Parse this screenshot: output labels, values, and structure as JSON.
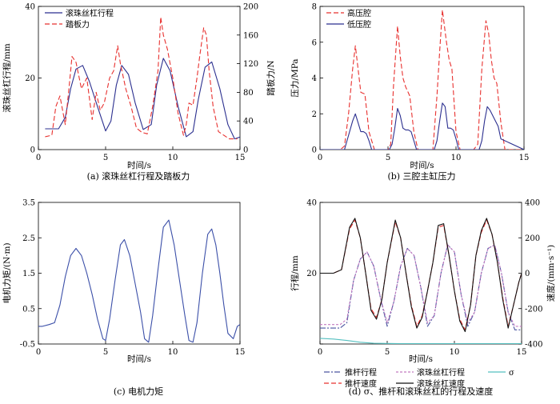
{
  "chart_data": [
    {
      "id": "a",
      "type": "line",
      "caption": "(a) 滚珠丝杠行程及踏板力",
      "xlabel": "时间/s",
      "ylabel": "滚珠丝杠行程/mm",
      "y2label": "踏板力/N",
      "xlim": [
        0,
        15
      ],
      "ylim": [
        0,
        40
      ],
      "y2lim": [
        0,
        200
      ],
      "xticks": [
        "0",
        "5",
        "10",
        "15"
      ],
      "yticks": [
        "0",
        "20",
        "40"
      ],
      "y2ticks": [
        "0",
        "40",
        "80",
        "120",
        "160",
        "200"
      ],
      "legend_position": "top-left",
      "series": [
        {
          "name": "滚珠丝杠行程",
          "axis": "left",
          "color": "#2b2f8f",
          "dash": "solid",
          "x": [
            0.5,
            1.5,
            2.0,
            2.4,
            2.8,
            3.3,
            3.8,
            4.4,
            5.0,
            5.4,
            5.8,
            6.2,
            6.7,
            7.2,
            7.8,
            8.4,
            8.8,
            9.3,
            9.8,
            10.4,
            11.0,
            11.5,
            11.9,
            12.4,
            12.9,
            13.5,
            14.1,
            14.6,
            15.0
          ],
          "y": [
            5.8,
            5.8,
            9,
            17,
            22.5,
            23.5,
            19,
            12,
            5.2,
            8,
            18,
            23.5,
            21,
            13,
            5.6,
            7,
            18,
            25.5,
            22,
            12,
            3.6,
            5,
            14,
            23,
            24.5,
            17,
            7,
            3,
            3.5
          ]
        },
        {
          "name": "踏板力",
          "axis": "right",
          "color": "#e8312f",
          "dash": "6,3",
          "x": [
            0.5,
            1.0,
            1.3,
            1.6,
            2.0,
            2.3,
            2.5,
            2.8,
            3.2,
            3.6,
            4.0,
            4.3,
            4.6,
            4.9,
            5.3,
            5.6,
            5.9,
            6.1,
            6.5,
            6.9,
            7.3,
            7.7,
            8.1,
            8.5,
            8.9,
            9.1,
            9.3,
            9.6,
            10.0,
            10.4,
            10.8,
            11.0,
            11.2,
            11.5,
            11.8,
            12.0,
            12.3,
            12.5,
            12.7,
            13.0,
            13.4,
            13.8,
            14.2,
            14.6,
            14.8
          ],
          "y": [
            18,
            20,
            60,
            75,
            35,
            90,
            130,
            122,
            85,
            100,
            42,
            80,
            55,
            65,
            100,
            110,
            145,
            120,
            85,
            60,
            30,
            24,
            22,
            60,
            110,
            185,
            160,
            140,
            100,
            50,
            20,
            35,
            65,
            62,
            100,
            130,
            170,
            160,
            110,
            60,
            25,
            20,
            15,
            15,
            15
          ]
        }
      ]
    },
    {
      "id": "b",
      "type": "line",
      "caption": "(b) 三腔主缸压力",
      "xlabel": "时间/s",
      "ylabel": "压力/MPa",
      "xlim": [
        0,
        15
      ],
      "ylim": [
        0,
        8
      ],
      "xticks": [
        "0",
        "5",
        "10",
        "15"
      ],
      "yticks": [
        "0",
        "2",
        "4",
        "6",
        "8"
      ],
      "legend_position": "top-left",
      "series": [
        {
          "name": "高压腔",
          "color": "#e8312f",
          "dash": "6,3",
          "x": [
            0,
            1.5,
            1.8,
            2.1,
            2.4,
            2.6,
            2.8,
            3.0,
            3.3,
            3.6,
            4.0,
            5.0,
            5.2,
            5.4,
            5.7,
            5.9,
            6.1,
            6.3,
            6.6,
            6.9,
            7.2,
            7.7,
            8.3,
            8.6,
            8.8,
            9.0,
            9.3,
            9.5,
            9.7,
            10.0,
            10.3,
            11.3,
            11.6,
            11.9,
            12.2,
            12.4,
            12.6,
            12.8,
            13.0,
            13.3,
            13.6,
            15.0
          ],
          "y": [
            0,
            0,
            0.2,
            2.0,
            4.5,
            5.8,
            4.5,
            3.2,
            3.1,
            1.0,
            0,
            0,
            0.3,
            3.5,
            6.9,
            5.2,
            4.0,
            3.5,
            3.0,
            1.0,
            0,
            0,
            0,
            3.0,
            5.5,
            7.8,
            6.0,
            5.0,
            4.5,
            1.0,
            0,
            0,
            0.3,
            4.5,
            7.2,
            6.5,
            5.0,
            4.0,
            3.7,
            1.5,
            0,
            0
          ],
          "label_points": false
        },
        {
          "name": "低压腔",
          "color": "#2b2f8f",
          "dash": "solid",
          "x": [
            0,
            1.8,
            2.1,
            2.4,
            2.6,
            2.8,
            3.0,
            3.2,
            3.4,
            3.6,
            3.8,
            5.1,
            5.3,
            5.5,
            5.7,
            5.9,
            6.1,
            6.3,
            6.5,
            6.7,
            6.9,
            7.1,
            8.4,
            8.6,
            8.8,
            9.0,
            9.2,
            9.4,
            9.6,
            9.8,
            10.0,
            10.2,
            11.7,
            11.9,
            12.1,
            12.3,
            12.5,
            12.7,
            12.9,
            13.1,
            13.3,
            15.0
          ],
          "y": [
            0,
            0,
            0.8,
            1.6,
            2.0,
            1.5,
            1.0,
            1.0,
            0.9,
            0.5,
            0,
            0,
            0.3,
            1.2,
            2.3,
            1.9,
            1.2,
            1.1,
            1.1,
            1.0,
            0.5,
            0,
            0,
            0.5,
            1.6,
            2.6,
            2.4,
            1.2,
            1.2,
            1.1,
            0.6,
            0,
            0,
            0.5,
            1.6,
            2.4,
            2.2,
            1.9,
            1.6,
            1.3,
            0.6,
            0
          ]
        }
      ]
    },
    {
      "id": "c",
      "type": "line",
      "caption": "(c) 电机力矩",
      "xlabel": "时间/s",
      "ylabel": "电机力矩/(N·m)",
      "xlim": [
        0,
        15
      ],
      "ylim": [
        -0.5,
        3.5
      ],
      "xticks": [
        "0",
        "5",
        "10",
        "15"
      ],
      "yticks": [
        "-0.5",
        "0.5",
        "1.5",
        "2.5",
        "3.5"
      ],
      "series": [
        {
          "name": "",
          "color": "#3b4fa8",
          "dash": "solid",
          "x": [
            0,
            0.3,
            0.8,
            1.2,
            1.6,
            2.0,
            2.4,
            2.8,
            3.2,
            3.6,
            4.0,
            4.4,
            4.8,
            5.0,
            5.3,
            5.7,
            6.1,
            6.4,
            6.8,
            7.2,
            7.6,
            7.9,
            8.2,
            8.5,
            8.9,
            9.3,
            9.7,
            10.1,
            10.5,
            10.9,
            11.2,
            11.5,
            11.8,
            12.2,
            12.6,
            12.9,
            13.2,
            13.5,
            13.8,
            14.1,
            14.5,
            14.8,
            15.0
          ],
          "y": [
            0,
            0,
            0.05,
            0.1,
            0.6,
            1.4,
            2.0,
            2.2,
            2.0,
            1.5,
            0.9,
            0.2,
            -0.35,
            -0.4,
            0.2,
            1.3,
            2.3,
            2.45,
            2.0,
            1.2,
            0.4,
            -0.35,
            -0.45,
            0.3,
            1.6,
            2.8,
            3.0,
            2.3,
            1.3,
            0.3,
            -0.4,
            -0.45,
            0.1,
            1.5,
            2.6,
            2.75,
            2.3,
            1.5,
            0.6,
            -0.2,
            -0.35,
            0.0,
            0.05
          ]
        }
      ]
    },
    {
      "id": "d",
      "type": "line",
      "caption": "(d) σ、推杆和滚珠丝杠的行程及速度",
      "xlabel": "时间/s",
      "ylabel": "行程/mm",
      "y2label": "速度/(mm·s⁻¹)",
      "xlim": [
        0,
        15
      ],
      "ylim": [
        0,
        40
      ],
      "y2lim": [
        -400,
        400
      ],
      "xticks": [
        "0",
        "5",
        "10",
        "15"
      ],
      "yticks": [
        "",
        "20",
        "40"
      ],
      "y2ticks": [
        "-400",
        "-200",
        "0",
        "200",
        "400"
      ],
      "legend_position": "bottom-outside",
      "series": [
        {
          "name": "推杆行程",
          "axis": "left",
          "color": "#4a54a0",
          "dash": "7,2,2,2",
          "x": [
            0,
            1.5,
            2.0,
            2.5,
            3.0,
            3.5,
            4.0,
            4.5,
            5.0,
            5.5,
            6.0,
            6.5,
            7.0,
            7.5,
            8.0,
            8.5,
            9.0,
            9.5,
            10.0,
            10.5,
            11.0,
            11.5,
            12.0,
            12.5,
            13.0,
            13.5,
            14.0,
            14.5,
            15.0
          ],
          "y": [
            4.5,
            4.5,
            6,
            18,
            24,
            26,
            22,
            13,
            5,
            12,
            22,
            27,
            25,
            16,
            5,
            8,
            20,
            28,
            26,
            14,
            5,
            9,
            20,
            27,
            28,
            20,
            9,
            4,
            4
          ]
        },
        {
          "name": "滚珠丝杠行程",
          "axis": "left",
          "color": "#c27ac0",
          "dash": "3,2",
          "x": [
            0,
            1.5,
            2.0,
            2.5,
            3.0,
            3.5,
            4.0,
            4.5,
            5.0,
            5.5,
            6.0,
            6.5,
            7.0,
            7.5,
            8.0,
            8.5,
            9.0,
            9.5,
            10.0,
            10.5,
            11.0,
            11.5,
            12.0,
            12.5,
            13.0,
            13.5,
            14.0,
            14.5,
            15.0
          ],
          "y": [
            5.5,
            5.5,
            7,
            18,
            24,
            26,
            22,
            13,
            6,
            12,
            22,
            27,
            25,
            16,
            6,
            8,
            20,
            28,
            26,
            14,
            6,
            9,
            20,
            27,
            28,
            20,
            9,
            5,
            5
          ]
        },
        {
          "name": "σ",
          "axis": "left",
          "color": "#55c0c0",
          "dash": "solid",
          "x": [
            0,
            1,
            2,
            3,
            4,
            6,
            8,
            10,
            12,
            15
          ],
          "y": [
            1.6,
            1.4,
            1.0,
            0.5,
            0.2,
            0.1,
            0.1,
            0.1,
            0.1,
            0.1
          ]
        },
        {
          "name": "推杆速度",
          "axis": "right",
          "color": "#e8312f",
          "dash": "6,3",
          "x": [
            0,
            1.0,
            1.6,
            2.2,
            2.6,
            3.0,
            3.4,
            3.8,
            4.2,
            4.6,
            5.0,
            5.6,
            6.0,
            6.4,
            6.8,
            7.2,
            7.6,
            8.0,
            8.4,
            8.8,
            9.2,
            9.6,
            10.0,
            10.4,
            10.8,
            11.2,
            11.6,
            12.0,
            12.4,
            12.8,
            13.2,
            13.6,
            14.0,
            14.4,
            14.8,
            15.0
          ],
          "y": [
            0,
            0,
            20,
            250,
            300,
            200,
            0,
            -200,
            -250,
            -150,
            60,
            290,
            200,
            0,
            -180,
            -300,
            -240,
            -100,
            60,
            260,
            270,
            100,
            -100,
            -260,
            -320,
            -180,
            100,
            230,
            300,
            220,
            60,
            -140,
            -300,
            -180,
            -50,
            0
          ]
        },
        {
          "name": "滚珠丝杠速度",
          "axis": "right",
          "color": "#111111",
          "dash": "solid",
          "x": [
            0,
            1.0,
            1.6,
            2.2,
            2.6,
            3.0,
            3.4,
            3.8,
            4.2,
            4.6,
            5.0,
            5.6,
            6.0,
            6.4,
            6.8,
            7.2,
            7.6,
            8.0,
            8.4,
            8.8,
            9.2,
            9.6,
            10.0,
            10.4,
            10.8,
            11.2,
            11.6,
            12.0,
            12.4,
            12.8,
            13.2,
            13.6,
            14.0,
            14.4,
            14.8,
            15.0
          ],
          "y": [
            0,
            0,
            20,
            260,
            310,
            200,
            0,
            -210,
            -260,
            -150,
            60,
            300,
            200,
            0,
            -190,
            -310,
            -250,
            -100,
            60,
            270,
            280,
            100,
            -100,
            -270,
            -330,
            -180,
            100,
            240,
            310,
            220,
            60,
            -150,
            -310,
            -180,
            -50,
            0
          ]
        }
      ]
    }
  ]
}
